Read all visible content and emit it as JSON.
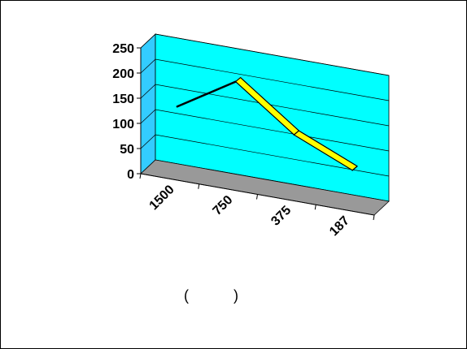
{
  "chart_data": {
    "type": "line",
    "categories": [
      "1500",
      "750",
      "375",
      "187"
    ],
    "series": [
      {
        "values": [
          130,
          200,
          115,
          65
        ]
      }
    ],
    "ylim": [
      0,
      250
    ],
    "yticks": [
      "0",
      "50",
      "100",
      "150",
      "200",
      "250"
    ],
    "grid": true,
    "legend": "none",
    "style": "3d",
    "colors": {
      "back_wall": "#00FFFF",
      "side_wall": "#33CCFF",
      "floor": "#999999",
      "line_3d": "#FFFF00",
      "line_outline": "#000000"
    }
  },
  "caption": {
    "open_paren": "(",
    "close_paren": ")"
  }
}
